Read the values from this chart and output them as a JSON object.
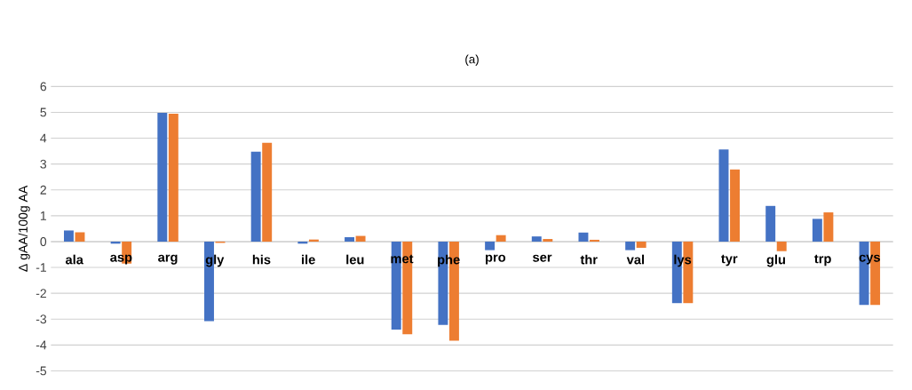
{
  "chart_data": {
    "type": "bar",
    "title": "(a)",
    "ylabel": "Δ gAA/100g AA",
    "categories": [
      "ala",
      "asp",
      "arg",
      "gly",
      "his",
      "ile",
      "leu",
      "met",
      "phe",
      "pro",
      "ser",
      "thr",
      "val",
      "lys",
      "tyr",
      "glu",
      "trp",
      "cys"
    ],
    "series": [
      {
        "color": "#4472c4",
        "values": [
          0.43,
          -0.08,
          4.98,
          -3.08,
          3.48,
          -0.08,
          0.17,
          -3.4,
          -3.22,
          -0.33,
          0.2,
          0.35,
          -0.33,
          -2.38,
          3.56,
          1.38,
          0.88,
          -2.45
        ]
      },
      {
        "color": "#ed7d31",
        "values": [
          0.36,
          -0.85,
          4.95,
          -0.05,
          3.82,
          0.08,
          0.22,
          -3.58,
          -3.83,
          0.25,
          0.1,
          0.07,
          -0.24,
          -2.38,
          2.79,
          -0.37,
          1.13,
          -2.45
        ]
      }
    ],
    "ylim": [
      -5,
      6
    ],
    "yticks": [
      -5,
      -4,
      -3,
      -2,
      -1,
      0,
      1,
      2,
      3,
      4,
      5,
      6
    ],
    "grid": "y",
    "legend": false
  }
}
